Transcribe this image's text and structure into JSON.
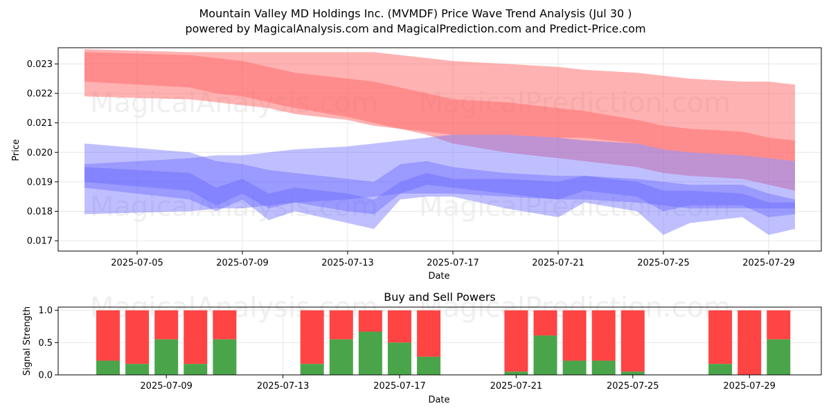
{
  "title": "Mountain Valley MD Holdings Inc. (MVMDF) Price Wave Trend Analysis (Jul 30 )",
  "subtitle": "powered by MagicalAnalysis.com and MagicalPrediction.com and Predict-Price.com",
  "watermarks": [
    "MagicalAnalysis.com",
    "MagicalPrediction.com"
  ],
  "colors": {
    "sell": "#ff4444",
    "buy": "#4aa54a",
    "red_band": "#ff6666",
    "blue_band": "#6666ff",
    "purple_band": "#a060c0"
  },
  "chart_data": [
    {
      "type": "area",
      "xlabel": "Date",
      "ylabel": "Price",
      "x_range": [
        "2025-07-02",
        "2025-07-31"
      ],
      "ylim": [
        0.01665,
        0.02355
      ],
      "grid": true,
      "x_ticks": [
        "2025-07-05",
        "2025-07-09",
        "2025-07-13",
        "2025-07-17",
        "2025-07-21",
        "2025-07-25",
        "2025-07-29"
      ],
      "y_ticks": [
        "0.017",
        "0.018",
        "0.019",
        "0.020",
        "0.021",
        "0.022",
        "0.023"
      ],
      "x": [
        "2025-07-03",
        "2025-07-07",
        "2025-07-08",
        "2025-07-09",
        "2025-07-10",
        "2025-07-11",
        "2025-07-13",
        "2025-07-14",
        "2025-07-15",
        "2025-07-16",
        "2025-07-17",
        "2025-07-19",
        "2025-07-21",
        "2025-07-22",
        "2025-07-24",
        "2025-07-25",
        "2025-07-26",
        "2025-07-28",
        "2025-07-29",
        "2025-07-30"
      ],
      "series": [
        {
          "band": "red",
          "upper": [
            0.0235,
            0.0234,
            0.0234,
            0.0234,
            0.0234,
            0.0234,
            0.0234,
            0.0234,
            0.0233,
            0.0232,
            0.0231,
            0.023,
            0.0229,
            0.0228,
            0.0227,
            0.0226,
            0.0225,
            0.0224,
            0.0224,
            0.0223
          ],
          "lower": [
            0.0219,
            0.0218,
            0.0217,
            0.0216,
            0.0215,
            0.0213,
            0.0211,
            0.0209,
            0.0208,
            0.0207,
            0.0206,
            0.0206,
            0.0205,
            0.0205,
            0.0203,
            0.0201,
            0.02,
            0.0199,
            0.0198,
            0.0197
          ]
        },
        {
          "band": "red",
          "upper": [
            0.0234,
            0.0233,
            0.0232,
            0.0231,
            0.0229,
            0.0227,
            0.0225,
            0.0224,
            0.0222,
            0.022,
            0.0218,
            0.0217,
            0.0215,
            0.0214,
            0.0211,
            0.0209,
            0.0208,
            0.0207,
            0.0205,
            0.0204
          ],
          "lower": [
            0.0224,
            0.0222,
            0.022,
            0.0219,
            0.0217,
            0.0215,
            0.0212,
            0.021,
            0.0208,
            0.0206,
            0.0203,
            0.02,
            0.0198,
            0.0197,
            0.0195,
            0.0193,
            0.0192,
            0.0191,
            0.0189,
            0.0187
          ]
        },
        {
          "band": "blue",
          "upper": [
            0.0203,
            0.02,
            0.0197,
            0.0196,
            0.0194,
            0.0193,
            0.0191,
            0.019,
            0.0196,
            0.0197,
            0.0195,
            0.0193,
            0.0192,
            0.0192,
            0.0191,
            0.019,
            0.0189,
            0.0189,
            0.0186,
            0.0184
          ],
          "lower": [
            0.0188,
            0.0184,
            0.018,
            0.0184,
            0.0177,
            0.018,
            0.0176,
            0.0174,
            0.0184,
            0.0185,
            0.0185,
            0.0181,
            0.0178,
            0.0183,
            0.018,
            0.0172,
            0.0176,
            0.0178,
            0.0172,
            0.0174
          ]
        },
        {
          "band": "blue",
          "upper": [
            0.0196,
            0.0198,
            0.0199,
            0.0199,
            0.02,
            0.0201,
            0.0202,
            0.0203,
            0.0204,
            0.0205,
            0.0206,
            0.0206,
            0.0205,
            0.0204,
            0.0203,
            0.0201,
            0.02,
            0.0199,
            0.0198,
            0.0197
          ],
          "lower": [
            0.0179,
            0.018,
            0.0181,
            0.0181,
            0.0182,
            0.0183,
            0.0184,
            0.0185,
            0.0186,
            0.0186,
            0.0186,
            0.0185,
            0.0184,
            0.0184,
            0.0183,
            0.0182,
            0.0181,
            0.0181,
            0.0181,
            0.0181
          ]
        },
        {
          "band": "blue",
          "upper": [
            0.0195,
            0.0193,
            0.0188,
            0.0191,
            0.0186,
            0.0188,
            0.0186,
            0.0184,
            0.019,
            0.0193,
            0.0191,
            0.0191,
            0.019,
            0.0192,
            0.019,
            0.0187,
            0.0187,
            0.0186,
            0.0183,
            0.0183
          ],
          "lower": [
            0.019,
            0.0187,
            0.0182,
            0.0186,
            0.0181,
            0.0183,
            0.018,
            0.0179,
            0.0186,
            0.0189,
            0.0188,
            0.0186,
            0.0184,
            0.0187,
            0.0185,
            0.018,
            0.0182,
            0.0182,
            0.0178,
            0.0179
          ]
        }
      ]
    },
    {
      "type": "bar",
      "title": "Buy and Sell Powers",
      "xlabel": "Date",
      "ylabel": "Signal Strength",
      "ylim": [
        0,
        1.05
      ],
      "grid": true,
      "x_ticks": [
        "2025-07-09",
        "2025-07-13",
        "2025-07-17",
        "2025-07-21",
        "2025-07-25",
        "2025-07-29"
      ],
      "y_ticks": [
        "0.0",
        "0.5",
        "1.0"
      ],
      "categories": [
        "2025-07-07",
        "2025-07-08",
        "2025-07-09",
        "2025-07-10",
        "2025-07-11",
        "2025-07-14",
        "2025-07-15",
        "2025-07-16",
        "2025-07-17",
        "2025-07-18",
        "2025-07-21",
        "2025-07-22",
        "2025-07-23",
        "2025-07-24",
        "2025-07-25",
        "2025-07-28",
        "2025-07-29",
        "2025-07-30"
      ],
      "buy": [
        0.22,
        0.17,
        0.55,
        0.17,
        0.55,
        0.17,
        0.55,
        0.67,
        0.5,
        0.28,
        0.05,
        0.61,
        0.22,
        0.22,
        0.05,
        0.17,
        0.0,
        0.55
      ],
      "total": 1.0
    }
  ]
}
